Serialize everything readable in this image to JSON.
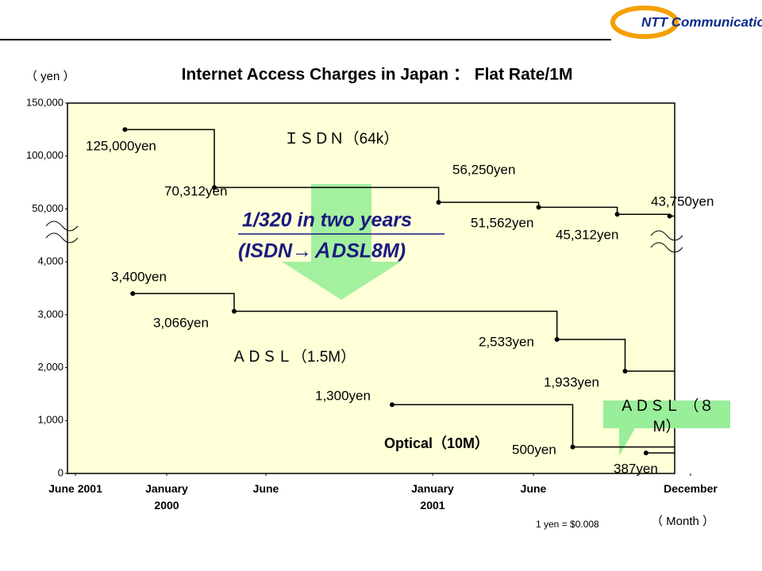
{
  "logo": "NTT Communications",
  "chart_data": {
    "type": "step",
    "title": "Internet Access Charges in Japan ： Flat Rate/1M",
    "y_label": "（ yen ）",
    "x_label": "（ Month ）",
    "note": "1 yen = $0.008",
    "annotations": [
      "1/320 in two years",
      "(ISDN→ＡDSL8M)"
    ],
    "ylim": [
      0,
      150000
    ],
    "yticks": [
      0,
      {
        "value": 1000,
        "label": "1,000"
      },
      {
        "value": 2000,
        "label": "2,000"
      },
      {
        "value": 3000,
        "label": "3,000"
      },
      {
        "value": 4000,
        "label": "4,000"
      },
      {
        "value": 50000,
        "label": "50,000"
      },
      {
        "value": 100000,
        "label": "100,000"
      },
      {
        "value": 150000,
        "label": "150,000"
      }
    ],
    "xlim": [
      0,
      30
    ],
    "xticks": [
      {
        "value": 0,
        "label": "June 2001"
      },
      {
        "value": 7,
        "label": "January 2000"
      },
      {
        "value": 12,
        "label": "June"
      },
      {
        "value": 19,
        "label": "January 2001"
      },
      {
        "value": 24,
        "label": "June"
      },
      {
        "value": 30,
        "label": "December"
      }
    ],
    "series": [
      {
        "name": "ＩＳＤＮ（64k）",
        "color": "#000000",
        "x": [
          3.8,
          9.4,
          19.3,
          24.2,
          27.2,
          29.2
        ],
        "values": [
          125000,
          70312,
          56250,
          51562,
          45312,
          43750
        ],
        "value_labels": [
          "125,000yen",
          "70,312yen",
          "56,250yen",
          "51,562yen",
          "45,312yen",
          "43,750yen"
        ]
      },
      {
        "name": "ＡＤＳＬ（1.5M）",
        "color": "#000000",
        "x": [
          4.4,
          10.4,
          24.9,
          27.5
        ],
        "values": [
          3400,
          3066,
          2533,
          1933
        ],
        "value_labels": [
          "3,400yen",
          "3,066yen",
          "2,533yen",
          "1,933yen"
        ]
      },
      {
        "name": "Optical（10M）",
        "color": "#000000",
        "x": [
          17.3,
          25.5
        ],
        "values": [
          1300,
          500
        ],
        "value_labels": [
          "1,300yen",
          "500yen"
        ]
      },
      {
        "name": "ＡＤＳＬ （８M）",
        "color": "#000000",
        "x": [
          28.3
        ],
        "values": [
          387
        ],
        "value_labels": [
          "387yen"
        ]
      }
    ]
  }
}
